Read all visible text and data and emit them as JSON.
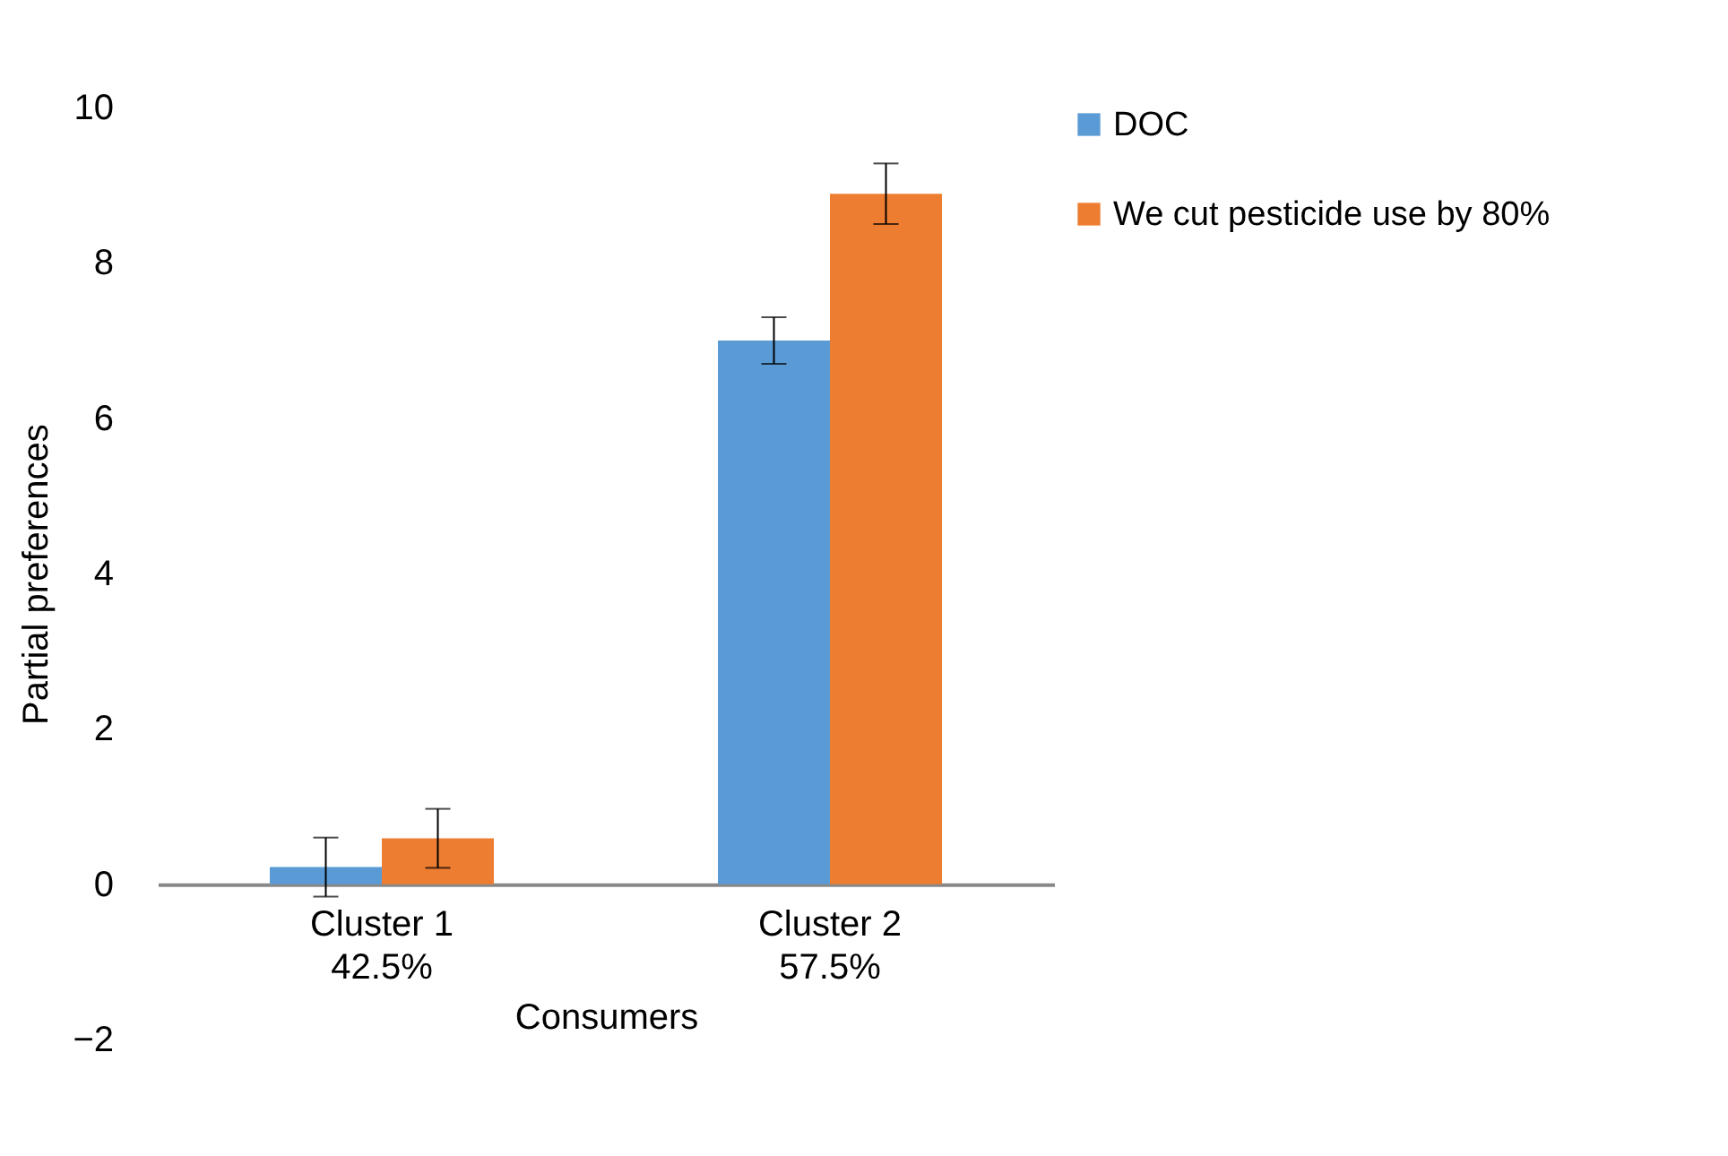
{
  "chart_data": {
    "type": "bar",
    "xlabel": "Consumers",
    "ylabel": "Partial preferences",
    "categories": [
      "Cluster 1\n42.5%",
      "Cluster 2\n57.5%"
    ],
    "series": [
      {
        "name": "DOC",
        "color": "#5b9bd5",
        "values": [
          0.22,
          7.0
        ],
        "errors": [
          0.38,
          0.3
        ]
      },
      {
        "name": "We cut pesticide use by 80%",
        "color": "#ed7d31",
        "values": [
          0.59,
          8.89
        ],
        "errors": [
          0.38,
          0.39
        ]
      }
    ],
    "ylim": [
      -2,
      10
    ],
    "yticks": [
      -2,
      0,
      2,
      4,
      6,
      8,
      10
    ],
    "grid": false,
    "legend": "right"
  }
}
